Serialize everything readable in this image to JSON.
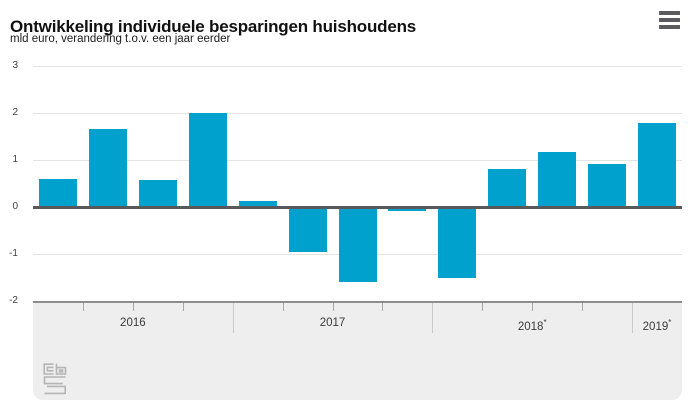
{
  "header": {
    "title": "Ontwikkeling individuele besparingen huishoudens",
    "subtitle": "mld euro, verandering t.o.v. een jaar eerder"
  },
  "icons": {
    "menu": "hamburger-menu-icon",
    "logo": "cbs-logo"
  },
  "colors": {
    "bar": "#00a1cd",
    "zero_line": "#58595b",
    "gridline": "#e4e4e4",
    "panel_background": "#eeeeee",
    "axis_line": "#8d8d8d",
    "quarter_tick": "#a9a9a9",
    "year_separator": "#c9c9c9"
  },
  "chart_data": {
    "type": "bar",
    "title": "Ontwikkeling individuele besparingen huishoudens",
    "subtitle": "mld euro, verandering t.o.v. een jaar eerder",
    "unit": "mld euro",
    "x_groups": [
      {
        "label": "2016",
        "flag": "",
        "count": 4
      },
      {
        "label": "2017",
        "flag": "",
        "count": 4
      },
      {
        "label": "2018",
        "flag": "*",
        "count": 4
      },
      {
        "label": "2019",
        "flag": "*",
        "count": 1
      }
    ],
    "values": [
      0.6,
      1.67,
      0.58,
      2.0,
      0.13,
      -0.95,
      -1.6,
      -0.09,
      -1.5,
      0.8,
      1.17,
      0.91,
      1.78
    ],
    "ylim": [
      -2,
      3
    ],
    "y_ticks": [
      3,
      2,
      1,
      0,
      -1,
      -2
    ],
    "grid": true,
    "legend": false
  }
}
